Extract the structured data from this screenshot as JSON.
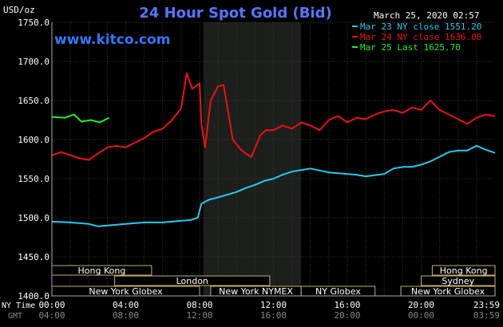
{
  "chart_data": {
    "type": "line",
    "title": "24 Hour Spot Gold (Bid)",
    "timestamp": "March 25, 2020 02:57",
    "y_unit": "USD/oz",
    "watermark": "www.kitco.com",
    "ylim": [
      1400,
      1750
    ],
    "yticks": [
      "1750.0",
      "1700.0",
      "1650.0",
      "1600.0",
      "1550.0",
      "1500.0",
      "1450.0",
      "1400.0"
    ],
    "ytick_values": [
      1750,
      1700,
      1650,
      1600,
      1550,
      1500,
      1450,
      1400
    ],
    "xlim": [
      0,
      24
    ],
    "x_label_ny": "NY Time",
    "x_label_gmt": "GMT",
    "xticks_ny": [
      "00:00",
      "04:00",
      "08:00",
      "12:00",
      "16:00",
      "20:00",
      "23:59"
    ],
    "xticks_gmt": [
      "04:00",
      "08:00",
      "12:00",
      "16:00",
      "20:00",
      "00:00",
      "03:59"
    ],
    "xtick_hours": [
      0,
      4,
      8,
      12,
      16,
      20,
      24
    ],
    "shaded_session_hours": [
      8.2,
      13.5
    ],
    "legend": [
      {
        "label": "Mar 23 NY close 1551.20",
        "color": "#22ccee"
      },
      {
        "label": "Mar 24 NY close 1636.00",
        "color": "#ee1111"
      },
      {
        "label": "Mar 25 Last 1625.70",
        "color": "#22ee22"
      }
    ],
    "series": [
      {
        "color": "#22ccee",
        "x": [
          0,
          1,
          2,
          2.5,
          3,
          3.5,
          4,
          5,
          6,
          7,
          7.5,
          7.9,
          8.1,
          8.5,
          9,
          10,
          10.5,
          11,
          11.5,
          12,
          12.5,
          13,
          13.5,
          14,
          15,
          16,
          16.5,
          17,
          18,
          18.5,
          19,
          19.5,
          20,
          20.5,
          21,
          21.5,
          22,
          22.5,
          23,
          23.5,
          24
        ],
        "y": [
          1495,
          1494,
          1492,
          1489,
          1490,
          1491,
          1492,
          1494,
          1494,
          1496,
          1497,
          1500,
          1518,
          1523,
          1526,
          1533,
          1538,
          1542,
          1547,
          1550,
          1555,
          1559,
          1561,
          1563,
          1558,
          1556,
          1555,
          1553,
          1556,
          1563,
          1565,
          1565,
          1568,
          1572,
          1578,
          1584,
          1586,
          1586,
          1592,
          1587,
          1583
        ]
      },
      {
        "color": "#ee1111",
        "x": [
          0,
          0.5,
          1,
          1.5,
          2,
          2.5,
          3,
          3.5,
          4,
          4.5,
          5,
          5.5,
          6,
          6.5,
          7,
          7.3,
          7.6,
          8,
          8.1,
          8.3,
          8.6,
          9,
          9.3,
          9.8,
          10.2,
          10.5,
          10.8,
          11.3,
          11.6,
          12,
          12.5,
          13,
          13.5,
          14,
          14.5,
          15,
          15.5,
          16,
          16.5,
          17,
          17.5,
          18,
          18.5,
          19,
          19.5,
          20,
          20.5,
          21,
          21.5,
          22,
          22.5,
          23,
          23.5,
          24
        ],
        "y": [
          1580,
          1584,
          1580,
          1576,
          1574,
          1582,
          1590,
          1592,
          1590,
          1596,
          1602,
          1610,
          1614,
          1625,
          1640,
          1685,
          1665,
          1672,
          1620,
          1590,
          1650,
          1668,
          1670,
          1600,
          1588,
          1582,
          1578,
          1606,
          1612,
          1612,
          1618,
          1614,
          1622,
          1618,
          1612,
          1625,
          1630,
          1622,
          1628,
          1626,
          1632,
          1636,
          1638,
          1634,
          1641,
          1638,
          1650,
          1638,
          1632,
          1626,
          1620,
          1628,
          1632,
          1630
        ]
      },
      {
        "color": "#22ee22",
        "x": [
          0,
          0.7,
          1.2,
          1.6,
          2.1,
          2.6,
          3.1
        ],
        "y": [
          1629,
          1628,
          1632,
          1623,
          1625,
          1622,
          1628
        ]
      }
    ],
    "sessions": [
      {
        "label": "Hong Kong",
        "start": 0,
        "end": 5.4,
        "row": 0
      },
      {
        "label": "Hong Kong",
        "start": 20.6,
        "end": 24,
        "row": 0
      },
      {
        "label": "London",
        "start": 3.4,
        "end": 11.8,
        "row": 1
      },
      {
        "label": "Sydney",
        "start": 20.0,
        "end": 24,
        "row": 1
      },
      {
        "label": "New York Globex",
        "start": 0,
        "end": 8.0,
        "row": 2
      },
      {
        "label": "New York NYMEX",
        "start": 8.6,
        "end": 13.5,
        "row": 2
      },
      {
        "label": "NY Globex",
        "start": 13.5,
        "end": 17.5,
        "row": 2
      },
      {
        "label": "New York Globex",
        "start": 18.9,
        "end": 24,
        "row": 2
      }
    ],
    "grid": true
  }
}
